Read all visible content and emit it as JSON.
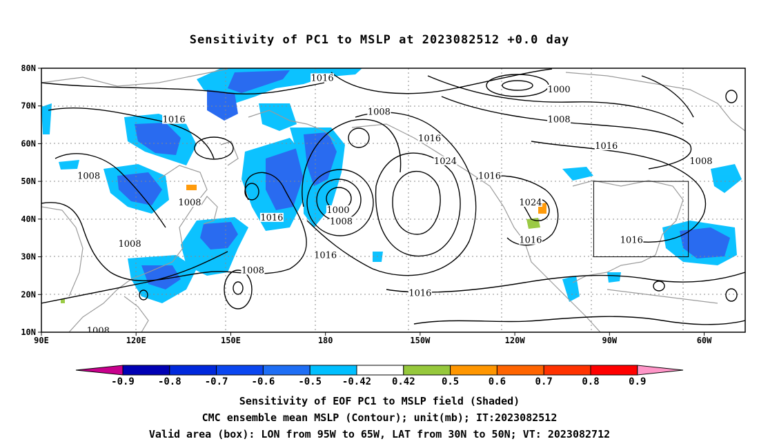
{
  "title": "Sensitivity of PC1 to MSLP at 2023082512 +0.0 day",
  "lat_labels": [
    "80N",
    "70N",
    "60N",
    "50N",
    "40N",
    "30N",
    "20N",
    "10N"
  ],
  "lon_labels": [
    "90E",
    "120E",
    "150E",
    "180",
    "150W",
    "120W",
    "90W",
    "60W"
  ],
  "contour_labels": [
    {
      "text": "1016",
      "lon": 132,
      "lat": 66
    },
    {
      "text": "1016",
      "lon": 179,
      "lat": 77
    },
    {
      "text": "1008",
      "lon": 105,
      "lat": 51
    },
    {
      "text": "1008",
      "lon": 137,
      "lat": 44
    },
    {
      "text": "1016",
      "lon": 163,
      "lat": 40
    },
    {
      "text": "1008",
      "lon": 118,
      "lat": 33
    },
    {
      "text": "1008",
      "lon": 157,
      "lat": 26
    },
    {
      "text": "1008",
      "lon": 108,
      "lat": 10
    },
    {
      "text": "1008",
      "lon": -163,
      "lat": 68
    },
    {
      "text": "1016",
      "lon": -147,
      "lat": 61
    },
    {
      "text": "1024",
      "lon": -142,
      "lat": 55
    },
    {
      "text": "1016",
      "lon": -128,
      "lat": 51
    },
    {
      "text": "1000",
      "lon": -176,
      "lat": 42
    },
    {
      "text": "1008",
      "lon": -175,
      "lat": 39
    },
    {
      "text": "1016",
      "lon": -180,
      "lat": 30
    },
    {
      "text": "1016",
      "lon": -150,
      "lat": 20
    },
    {
      "text": "1000",
      "lon": -106,
      "lat": 74
    },
    {
      "text": "1008",
      "lon": -106,
      "lat": 66
    },
    {
      "text": "1016",
      "lon": -91,
      "lat": 59
    },
    {
      "text": "1008",
      "lon": -61,
      "lat": 55
    },
    {
      "text": "1024",
      "lon": -115,
      "lat": 44
    },
    {
      "text": "1016",
      "lon": -115,
      "lat": 34
    },
    {
      "text": "1016",
      "lon": -83,
      "lat": 34
    }
  ],
  "colorbar": {
    "labels": [
      "-0.9",
      "-0.8",
      "-0.7",
      "-0.6",
      "-0.5",
      "-0.42",
      "0.42",
      "0.5",
      "0.6",
      "0.7",
      "0.8",
      "0.9"
    ],
    "colors": [
      "#c8008c",
      "#0000b4",
      "#0028dc",
      "#0a46f0",
      "#1e6ef5",
      "#00bfff",
      "#ffffff",
      "#96c83c",
      "#ff9600",
      "#ff6400",
      "#ff3200",
      "#ff0000",
      "#ff96c8"
    ]
  },
  "shading_colors": {
    "blue": "#1e64f0",
    "cyan": "#00bfff",
    "deep": "#0a3cdc",
    "green": "#96c83c",
    "orange": "#ff9600"
  },
  "box": {
    "lon_min": -95,
    "lon_max": -65,
    "lat_min": 30,
    "lat_max": 50
  },
  "footer": {
    "line1": "Sensitivity of EOF PC1 to MSLP field (Shaded)",
    "line2": "CMC ensemble mean MSLP (Contour); unit(mb); IT:2023082512",
    "line3": "Valid area (box): LON from 95W to 65W, LAT from 30N to 50N; VT: 2023082712"
  }
}
